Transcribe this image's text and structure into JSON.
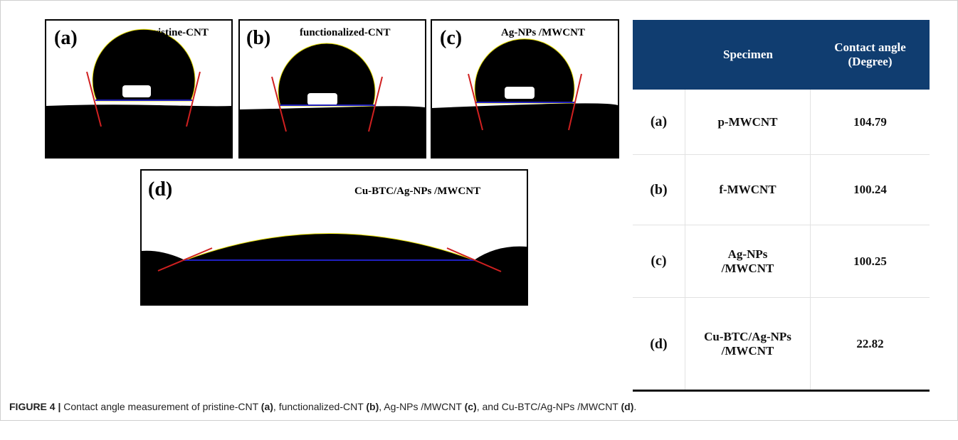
{
  "panels": [
    {
      "label": "(a)",
      "title": "pristine-CNT"
    },
    {
      "label": "(b)",
      "title": "functionalized-CNT"
    },
    {
      "label": "(c)",
      "title": "Ag-NPs /MWCNT"
    },
    {
      "label": "(d)",
      "title": "Cu-BTC/Ag-NPs /MWCNT"
    }
  ],
  "table": {
    "header": [
      "Specimen",
      "Contact angle\n(Degree)"
    ],
    "rows": [
      [
        "(a)",
        "p-MWCNT",
        "104.79"
      ],
      [
        "(b)",
        "f-MWCNT",
        "100.24"
      ],
      [
        "(c)",
        "Ag-NPs\n/MWCNT",
        "100.25"
      ],
      [
        "(d)",
        "Cu-BTC/Ag-NPs\n/MWCNT",
        "22.82"
      ]
    ]
  },
  "caption": {
    "label": "FIGURE 4 |",
    "parts": [
      " Contact angle measurement of pristine-CNT ",
      "(a)",
      ", functionalized-CNT ",
      "(b)",
      ", Ag-NPs /MWCNT ",
      "(c)",
      ", and Cu-BTC/Ag-NPs /MWCNT ",
      "(d)",
      "."
    ]
  }
}
